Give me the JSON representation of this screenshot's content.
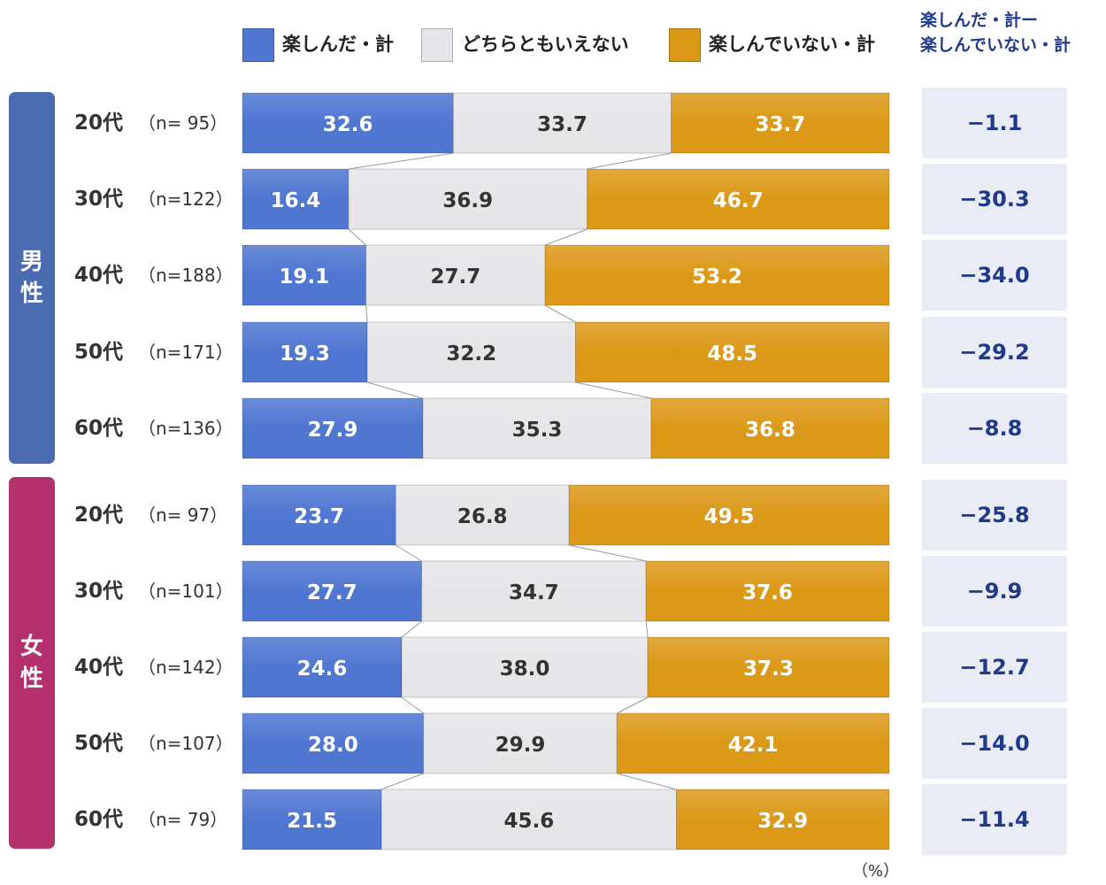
{
  "chart_data": {
    "type": "bar",
    "orientation": "horizontal-stacked-100",
    "unit": "（%）",
    "legend": [
      "楽しんだ・計",
      "どちらともいえない",
      "楽しんでいない・計"
    ],
    "diff_header": [
      "楽しんだ・計ー",
      "楽しんでいない・計"
    ],
    "colors": {
      "enjoyed": "#4f76d1",
      "neutral": "#e6e6e9",
      "not_enjoyed": "#dc9918",
      "male_band": "#4b6cb0",
      "female_band": "#b5316e",
      "diff_text": "#1f3a8a"
    },
    "groups": [
      {
        "name": "男性",
        "name_lines": [
          "男",
          "性"
        ],
        "rows": [
          {
            "age": "20代",
            "n": "（n= 95）",
            "values": [
              32.6,
              33.7,
              33.7
            ],
            "labels": [
              "32.6",
              "33.7",
              "33.7"
            ],
            "diff": "−1.1"
          },
          {
            "age": "30代",
            "n": "（n=122）",
            "values": [
              16.4,
              36.9,
              46.7
            ],
            "labels": [
              "16.4",
              "36.9",
              "46.7"
            ],
            "diff": "−30.3"
          },
          {
            "age": "40代",
            "n": "（n=188）",
            "values": [
              19.1,
              27.7,
              53.2
            ],
            "labels": [
              "19.1",
              "27.7",
              "53.2"
            ],
            "diff": "−34.0"
          },
          {
            "age": "50代",
            "n": "（n=171）",
            "values": [
              19.3,
              32.2,
              48.5
            ],
            "labels": [
              "19.3",
              "32.2",
              "48.5"
            ],
            "diff": "−29.2"
          },
          {
            "age": "60代",
            "n": "（n=136）",
            "values": [
              27.9,
              35.3,
              36.8
            ],
            "labels": [
              "27.9",
              "35.3",
              "36.8"
            ],
            "diff": "−8.8"
          }
        ]
      },
      {
        "name": "女性",
        "name_lines": [
          "女",
          "性"
        ],
        "rows": [
          {
            "age": "20代",
            "n": "（n= 97）",
            "values": [
              23.7,
              26.8,
              49.5
            ],
            "labels": [
              "23.7",
              "26.8",
              "49.5"
            ],
            "diff": "−25.8"
          },
          {
            "age": "30代",
            "n": "（n=101）",
            "values": [
              27.7,
              34.7,
              37.6
            ],
            "labels": [
              "27.7",
              "34.7",
              "37.6"
            ],
            "diff": "−9.9"
          },
          {
            "age": "40代",
            "n": "（n=142）",
            "values": [
              24.6,
              38.0,
              37.3
            ],
            "labels": [
              "24.6",
              "38.0",
              "37.3"
            ],
            "diff": "−12.7"
          },
          {
            "age": "50代",
            "n": "（n=107）",
            "values": [
              28.0,
              29.9,
              42.1
            ],
            "labels": [
              "28.0",
              "29.9",
              "42.1"
            ],
            "diff": "−14.0"
          },
          {
            "age": "60代",
            "n": "（n= 79）",
            "values": [
              21.5,
              45.6,
              32.9
            ],
            "labels": [
              "21.5",
              "45.6",
              "32.9"
            ],
            "diff": "−11.4"
          }
        ]
      }
    ],
    "xlim": [
      0,
      100
    ]
  }
}
